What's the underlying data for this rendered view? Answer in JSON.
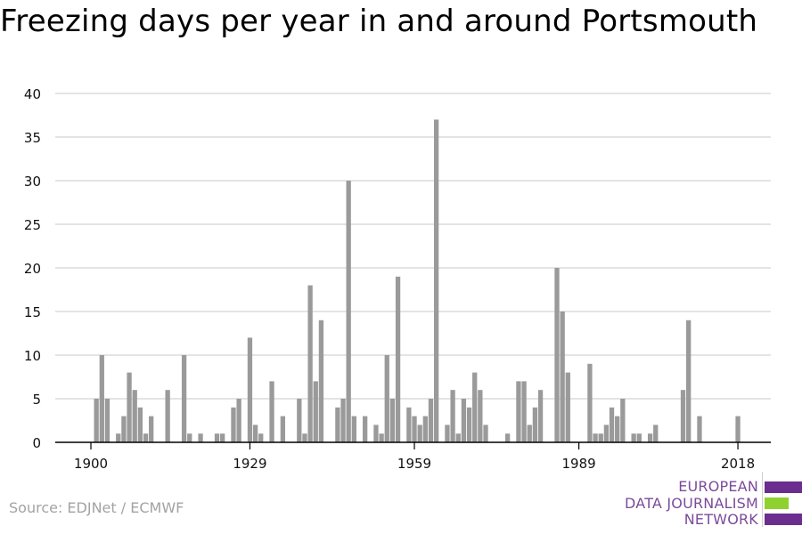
{
  "title": "Freezing days per year in and around Portsmouth",
  "source": "Source: EDJNet / ECMWF",
  "logo": {
    "line1": "EUROPEAN",
    "line2": "DATA JOURNALISM",
    "line3": "NETWORK",
    "purple": "#6b2d8e",
    "green": "#8fd12e"
  },
  "colors": {
    "bar": "#9a9a9a",
    "grid": "#dcdcdc",
    "axis": "#000000"
  },
  "chart_data": {
    "type": "bar",
    "title": "Freezing days per year in and around Portsmouth",
    "xlabel": "",
    "ylabel": "",
    "x_start": 1900,
    "x_end": 2018,
    "xticks": [
      1900,
      1929,
      1959,
      1989,
      2018
    ],
    "yticks": [
      0,
      5,
      10,
      15,
      20,
      25,
      30,
      35,
      40
    ],
    "ylim": [
      0,
      40
    ],
    "grid": true,
    "x": [
      1900,
      1901,
      1902,
      1903,
      1904,
      1905,
      1906,
      1907,
      1908,
      1909,
      1910,
      1911,
      1912,
      1913,
      1914,
      1915,
      1916,
      1917,
      1918,
      1919,
      1920,
      1921,
      1922,
      1923,
      1924,
      1925,
      1926,
      1927,
      1928,
      1929,
      1930,
      1931,
      1932,
      1933,
      1934,
      1935,
      1936,
      1937,
      1938,
      1939,
      1940,
      1941,
      1942,
      1943,
      1944,
      1945,
      1946,
      1947,
      1948,
      1949,
      1950,
      1951,
      1952,
      1953,
      1954,
      1955,
      1956,
      1957,
      1958,
      1959,
      1960,
      1961,
      1962,
      1963,
      1964,
      1965,
      1966,
      1967,
      1968,
      1969,
      1970,
      1971,
      1972,
      1973,
      1974,
      1975,
      1976,
      1977,
      1978,
      1979,
      1980,
      1981,
      1982,
      1983,
      1984,
      1985,
      1986,
      1987,
      1988,
      1989,
      1990,
      1991,
      1992,
      1993,
      1994,
      1995,
      1996,
      1997,
      1998,
      1999,
      2000,
      2001,
      2002,
      2003,
      2004,
      2005,
      2006,
      2007,
      2008,
      2009,
      2010,
      2011,
      2012,
      2013,
      2014,
      2015,
      2016,
      2017,
      2018
    ],
    "values": [
      0,
      5,
      10,
      5,
      0,
      1,
      3,
      8,
      6,
      4,
      1,
      3,
      0,
      0,
      6,
      0,
      0,
      10,
      1,
      0,
      1,
      0,
      0,
      1,
      1,
      0,
      4,
      5,
      0,
      12,
      2,
      1,
      0,
      7,
      0,
      3,
      0,
      0,
      5,
      1,
      18,
      7,
      14,
      0,
      0,
      4,
      5,
      30,
      3,
      0,
      3,
      0,
      2,
      1,
      10,
      5,
      19,
      0,
      4,
      3,
      2,
      3,
      5,
      37,
      0,
      2,
      6,
      1,
      5,
      4,
      8,
      6,
      2,
      0,
      0,
      0,
      1,
      0,
      7,
      7,
      2,
      4,
      6,
      0,
      0,
      20,
      15,
      8,
      0,
      0,
      0,
      9,
      1,
      1,
      2,
      4,
      3,
      5,
      0,
      1,
      1,
      0,
      1,
      2,
      0,
      0,
      0,
      0,
      6,
      14,
      0,
      3,
      0,
      0,
      0,
      0,
      0,
      0,
      3
    ]
  }
}
